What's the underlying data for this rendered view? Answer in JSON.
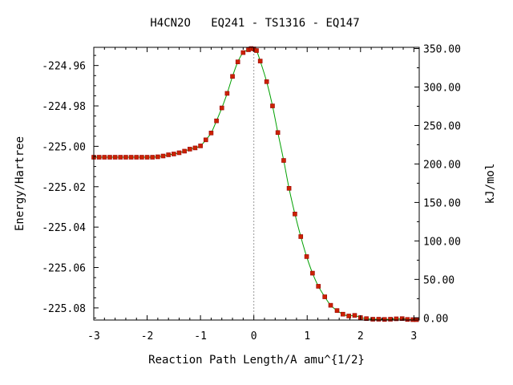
{
  "chart_data": {
    "type": "line",
    "title": "H4CN2O   EQ241 - TS1316 - EQ147",
    "xlabel": "Reaction Path Length/A amu^{1/2}",
    "ylabel": "Energy/Hartree",
    "ylabel_right": "kJ/mol",
    "xlim": [
      -3.0,
      3.1
    ],
    "ylim": [
      -225.086,
      -224.951
    ],
    "y2lim": [
      -2.8,
      351.6
    ],
    "x_ticks": [
      {
        "value": -3,
        "label": "-3"
      },
      {
        "value": -2,
        "label": "-2"
      },
      {
        "value": -1,
        "label": "-1"
      },
      {
        "value": 0,
        "label": "0"
      },
      {
        "value": 1,
        "label": "1"
      },
      {
        "value": 2,
        "label": "2"
      },
      {
        "value": 3,
        "label": "3"
      }
    ],
    "y_ticks": [
      {
        "value": -224.96,
        "label": "-224.96"
      },
      {
        "value": -224.98,
        "label": "-224.98"
      },
      {
        "value": -225.0,
        "label": "-225.00"
      },
      {
        "value": -225.02,
        "label": "-225.02"
      },
      {
        "value": -225.04,
        "label": "-225.04"
      },
      {
        "value": -225.06,
        "label": "-225.06"
      },
      {
        "value": -225.08,
        "label": "-225.08"
      }
    ],
    "y2_ticks": [
      {
        "value": 350,
        "label": "350.00"
      },
      {
        "value": 300,
        "label": "300.00"
      },
      {
        "value": 250,
        "label": "250.00"
      },
      {
        "value": 200,
        "label": "200.00"
      },
      {
        "value": 150,
        "label": "150.00"
      },
      {
        "value": 100,
        "label": "100.00"
      },
      {
        "value": 50,
        "label": "50.00"
      },
      {
        "value": 0,
        "label": "0.00"
      }
    ],
    "ts_marker_x": 0,
    "colors": {
      "line": "#00a000",
      "point": "#cc2200",
      "point_edge": "#990000",
      "ts_line": "#999999",
      "frame": "#000000"
    },
    "series": [
      {
        "x": [
          -3.0,
          -2.9,
          -2.8,
          -2.7,
          -2.6,
          -2.5,
          -2.4,
          -2.3,
          -2.2,
          -2.1,
          -2.0,
          -1.9,
          -1.8,
          -1.7,
          -1.6,
          -1.5,
          -1.4,
          -1.3,
          -1.2,
          -1.1,
          -1.0,
          -0.9,
          -0.8,
          -0.7,
          -0.6,
          -0.5,
          -0.4,
          -0.3,
          -0.2,
          -0.1,
          -0.05,
          0.0,
          0.05,
          0.12,
          0.24,
          0.35,
          0.45,
          0.56,
          0.66,
          0.77,
          0.88,
          0.99,
          1.1,
          1.21,
          1.33,
          1.44,
          1.56,
          1.67,
          1.78,
          1.89,
          2.0,
          2.11,
          2.23,
          2.34,
          2.45,
          2.56,
          2.67,
          2.78,
          2.88,
          2.98,
          3.05
        ],
        "y": [
          -225.0054,
          -225.0054,
          -225.0054,
          -225.0054,
          -225.0054,
          -225.0054,
          -225.0054,
          -225.0054,
          -225.0054,
          -225.0054,
          -225.0054,
          -225.0054,
          -225.0052,
          -225.0048,
          -225.0042,
          -225.0038,
          -225.0032,
          -225.0024,
          -225.0014,
          -225.0008,
          -224.9998,
          -224.9968,
          -224.9934,
          -224.9874,
          -224.981,
          -224.9738,
          -224.9654,
          -224.9582,
          -224.9536,
          -224.9522,
          -224.9516,
          -224.9518,
          -224.9526,
          -224.9578,
          -224.968,
          -224.98,
          -224.9932,
          -225.007,
          -225.0208,
          -225.0335,
          -225.0447,
          -225.0546,
          -225.0628,
          -225.0693,
          -225.0745,
          -225.0787,
          -225.0813,
          -225.0831,
          -225.084,
          -225.0837,
          -225.0848,
          -225.0853,
          -225.0856,
          -225.0856,
          -225.0857,
          -225.0856,
          -225.0854,
          -225.0853,
          -225.0857,
          -225.0858,
          -225.0858
        ]
      }
    ]
  }
}
